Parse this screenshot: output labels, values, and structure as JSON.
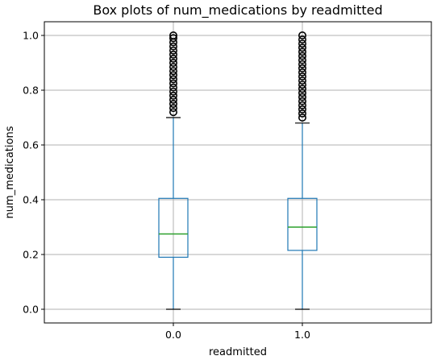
{
  "chart_data": {
    "type": "box",
    "title": "Box plots of num_medications by readmitted",
    "xlabel": "readmitted",
    "ylabel": "num_medications",
    "ylim": [
      -0.05,
      1.05
    ],
    "yticks": [
      0.0,
      0.2,
      0.4,
      0.6,
      0.8,
      1.0
    ],
    "ytick_labels": [
      "0.0",
      "0.2",
      "0.4",
      "0.6",
      "0.8",
      "1.0"
    ],
    "grid": true,
    "categories": [
      "0.0",
      "1.0"
    ],
    "boxes": [
      {
        "category": "0.0",
        "whisker_low": 0.0,
        "q1": 0.19,
        "median": 0.275,
        "q3": 0.405,
        "whisker_high": 0.7,
        "outliers": [
          0.72,
          0.735,
          0.75,
          0.765,
          0.78,
          0.795,
          0.81,
          0.825,
          0.84,
          0.855,
          0.87,
          0.885,
          0.9,
          0.915,
          0.93,
          0.945,
          0.96,
          0.975,
          0.99,
          1.0
        ]
      },
      {
        "category": "1.0",
        "whisker_low": 0.0,
        "q1": 0.215,
        "median": 0.3,
        "q3": 0.405,
        "whisker_high": 0.68,
        "outliers": [
          0.7,
          0.715,
          0.73,
          0.745,
          0.76,
          0.775,
          0.79,
          0.805,
          0.82,
          0.835,
          0.85,
          0.865,
          0.88,
          0.895,
          0.91,
          0.925,
          0.94,
          0.955,
          0.97,
          0.985,
          1.0
        ]
      }
    ],
    "colors": {
      "box": "#1f77b4",
      "median": "#2ca02c",
      "cap": "#000000",
      "flier": "#000000",
      "grid": "#b0b0b0"
    }
  }
}
